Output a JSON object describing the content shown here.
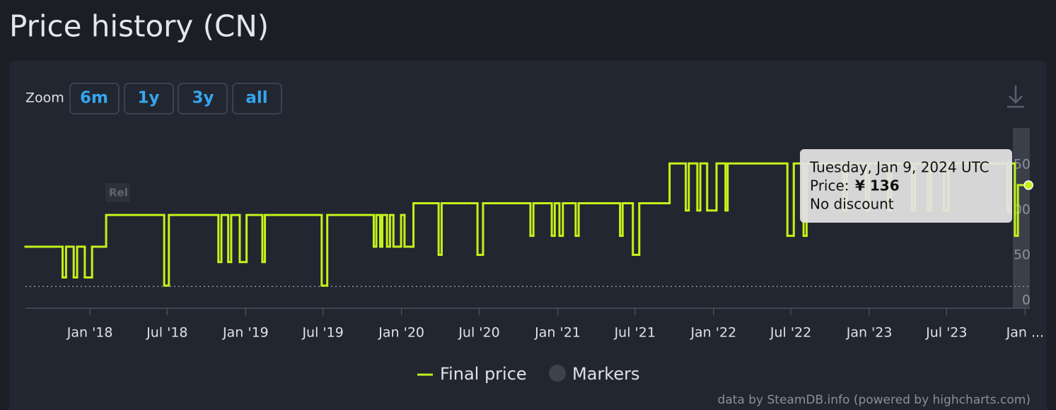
{
  "title": "Price history (CN)",
  "zoom": {
    "label": "Zoom",
    "buttons": [
      "6m",
      "1y",
      "3y",
      "all"
    ]
  },
  "chart_data": {
    "type": "step-line",
    "x": [
      "2017-08-03",
      "2017-10-29",
      "2017-11-06",
      "2017-11-24",
      "2017-12-02",
      "2017-12-20",
      "2018-01-06",
      "2018-02-08",
      "2018-06-24",
      "2018-07-05",
      "2018-10-29",
      "2018-11-05",
      "2018-11-21",
      "2018-11-28",
      "2018-12-18",
      "2019-01-03",
      "2019-02-09",
      "2019-02-15",
      "2019-06-28",
      "2019-07-11",
      "2019-10-28",
      "2019-11-03",
      "2019-11-12",
      "2019-11-17",
      "2019-11-28",
      "2019-12-05",
      "2019-12-13",
      "2019-12-31",
      "2020-01-08",
      "2020-01-29",
      "2020-03-28",
      "2020-04-04",
      "2020-06-27",
      "2020-07-10",
      "2020-10-29",
      "2020-11-05",
      "2020-12-18",
      "2020-12-25",
      "2021-01-05",
      "2021-01-13",
      "2021-02-12",
      "2021-02-19",
      "2021-05-27",
      "2021-06-02",
      "2021-06-26",
      "2021-07-11",
      "2021-09-20",
      "2021-10-28",
      "2021-11-04",
      "2021-11-24",
      "2021-12-01",
      "2021-12-17",
      "2022-01-08",
      "2022-01-29",
      "2022-02-03",
      "2022-06-23",
      "2022-07-08",
      "2022-07-31",
      "2022-08-07",
      "2022-11-02",
      "2022-11-09",
      "2022-12-24",
      "2022-12-31",
      "2023-02-14",
      "2023-02-21",
      "2023-04-11",
      "2023-04-18",
      "2023-05-18",
      "2023-05-25",
      "2023-06-25",
      "2023-07-05",
      "2023-11-21",
      "2023-11-28",
      "2023-12-08",
      "2023-12-15",
      "2024-01-09"
    ],
    "series": [
      {
        "name": "Final price",
        "color": "#c3f21a",
        "values": [
          68,
          34,
          68,
          34,
          68,
          34,
          68,
          103,
          25,
          103,
          51,
          103,
          51,
          103,
          51,
          103,
          51,
          103,
          25,
          103,
          68,
          103,
          68,
          103,
          68,
          103,
          68,
          103,
          68,
          116,
          59,
          116,
          59,
          116,
          80,
          116,
          80,
          116,
          80,
          116,
          80,
          116,
          80,
          116,
          59,
          116,
          160,
          108,
          160,
          108,
          160,
          108,
          160,
          108,
          160,
          80,
          160,
          80,
          160,
          108,
          160,
          108,
          160,
          108,
          160,
          108,
          160,
          108,
          160,
          108,
          160,
          108,
          160,
          80,
          136,
          136
        ]
      }
    ],
    "markers": {
      "name": "Markers",
      "color": "#3d424c"
    },
    "xlim": [
      "2017-08-03",
      "2024-01-12"
    ],
    "xticks": [
      {
        "value": "2018-01-01",
        "label": "Jan '18"
      },
      {
        "value": "2018-07-01",
        "label": "Jul '18"
      },
      {
        "value": "2019-01-01",
        "label": "Jan '19"
      },
      {
        "value": "2019-07-01",
        "label": "Jul '19"
      },
      {
        "value": "2020-01-01",
        "label": "Jan '20"
      },
      {
        "value": "2020-07-01",
        "label": "Jul '20"
      },
      {
        "value": "2021-01-01",
        "label": "Jan '21"
      },
      {
        "value": "2021-07-01",
        "label": "Jul '21"
      },
      {
        "value": "2022-01-01",
        "label": "Jan '22"
      },
      {
        "value": "2022-07-01",
        "label": "Jul '22"
      },
      {
        "value": "2023-01-01",
        "label": "Jan '23"
      },
      {
        "value": "2023-07-01",
        "label": "Jul '23"
      },
      {
        "value": "2024-01-01",
        "label": "Jan ..."
      }
    ],
    "ylim": [
      0,
      200
    ],
    "yticks": [
      0,
      50,
      100,
      150
    ],
    "grid": false,
    "plot_lines": [
      {
        "value": 24,
        "style": "dotted"
      }
    ],
    "annotations": [
      "Rel"
    ],
    "tooltip": {
      "date": "Tuesday, Jan 9, 2024 UTC",
      "price_label": "Price:",
      "price": "¥ 136",
      "discount": "No discount"
    },
    "credits": "data by SteamDB.info (powered by highcharts.com)"
  }
}
